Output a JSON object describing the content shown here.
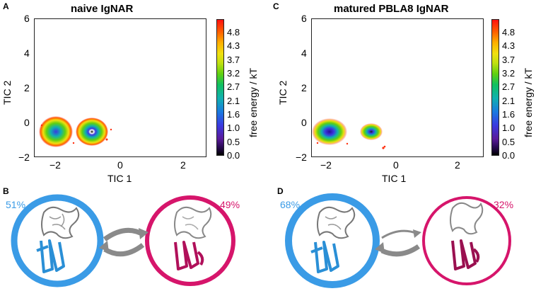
{
  "panels": {
    "A": {
      "letter": "A",
      "title": "naive IgNAR",
      "xlabel": "TIC 1",
      "ylabel": "TIC 2",
      "xticks": [
        "−2",
        "0",
        "2"
      ],
      "yticks": [
        "6",
        "4",
        "2",
        "0",
        "−2"
      ],
      "cb_label": "free energy / kT",
      "cb_ticks": [
        "4.8",
        "4.3",
        "3.7",
        "3.2",
        "2.7",
        "2.1",
        "1.6",
        "1.0",
        "0.5",
        "0.0"
      ]
    },
    "C": {
      "letter": "C",
      "title": "matured PBLA8 IgNAR",
      "xlabel": "TIC 1",
      "ylabel": "TIC 2",
      "xticks": [
        "−2",
        "0",
        "2"
      ],
      "yticks": [
        "6",
        "4",
        "2",
        "0",
        "−2"
      ],
      "cb_label": "free energy / kT",
      "cb_ticks": [
        "4.8",
        "4.3",
        "3.7",
        "3.2",
        "2.7",
        "2.1",
        "1.6",
        "1.0",
        "0.5",
        "0.0"
      ]
    },
    "B": {
      "letter": "B",
      "left_pct": "51%",
      "right_pct": "49%"
    },
    "D": {
      "letter": "D",
      "left_pct": "68%",
      "right_pct": "32%"
    }
  },
  "colors": {
    "blue_state": "#3a9be6",
    "pink_state": "#d6156b",
    "arrow": "#8a8a8a"
  },
  "icons": [
    "protein-structure-icon",
    "exchange-arrows-icon"
  ]
}
